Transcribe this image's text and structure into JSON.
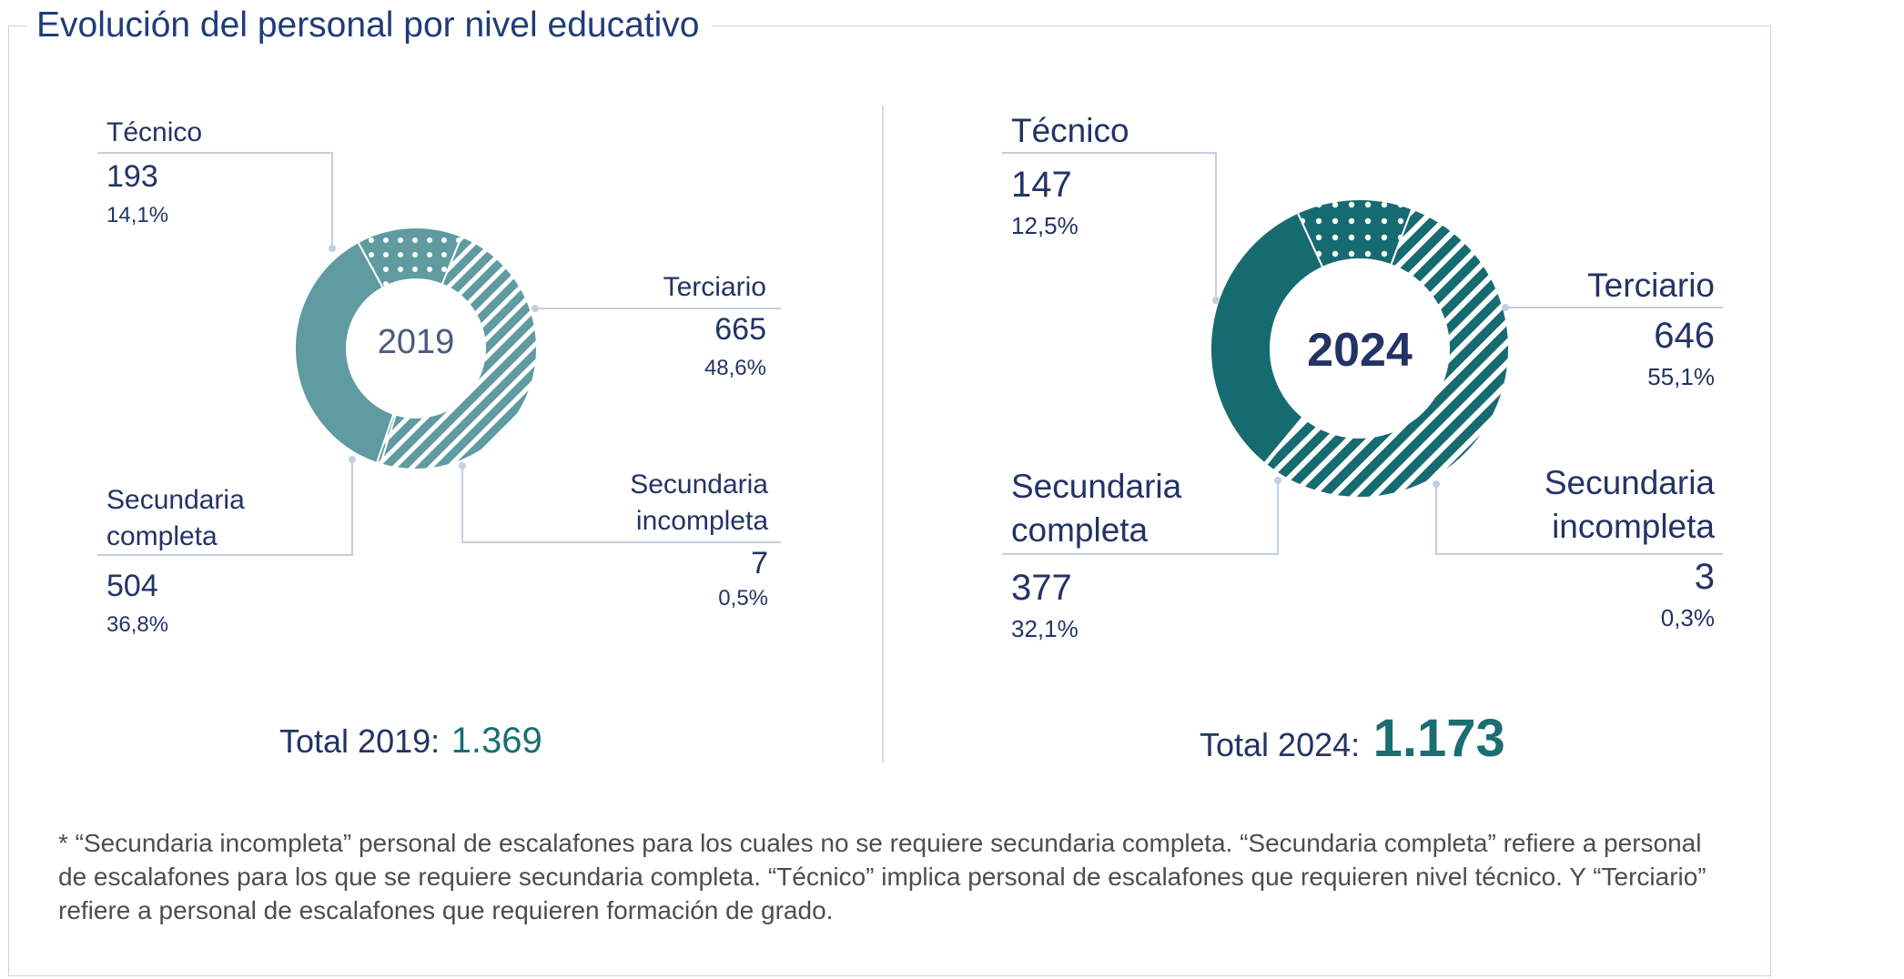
{
  "title": "Evolución del personal por nivel educativo",
  "colors": {
    "teal_2019": "#5f9ba0",
    "teal_2024": "#166b70",
    "text": "#233366",
    "total_value": "#1a6e72"
  },
  "chart_data": [
    {
      "type": "pie",
      "center_label": "2019",
      "total_label": "Total 2019:",
      "total_value": "1.369",
      "series": [
        {
          "name": "Técnico",
          "value": 193,
          "pct": "14,1%",
          "pattern": "dots"
        },
        {
          "name": "Terciario",
          "value": 665,
          "pct": "48,6%",
          "pattern": "stripes"
        },
        {
          "name": "Secundaria incompleta",
          "value": 7,
          "pct": "0,5%",
          "pattern": "stripes"
        },
        {
          "name": "Secundaria completa",
          "value": 504,
          "pct": "36,8%",
          "pattern": "solid"
        }
      ],
      "labels": {
        "tecnico": {
          "name": "Técnico",
          "value": "193",
          "pct": "14,1%"
        },
        "terciario": {
          "name": "Terciario",
          "value": "665",
          "pct": "48,6%"
        },
        "sec_incompleta": {
          "name1": "Secundaria",
          "name2": "incompleta",
          "value": "7",
          "pct": "0,5%"
        },
        "sec_completa": {
          "name1": "Secundaria",
          "name2": "completa",
          "value": "504",
          "pct": "36,8%"
        }
      }
    },
    {
      "type": "pie",
      "center_label": "2024",
      "total_label": "Total 2024:",
      "total_value": "1.173",
      "series": [
        {
          "name": "Técnico",
          "value": 147,
          "pct": "12,5%",
          "pattern": "dots"
        },
        {
          "name": "Terciario",
          "value": 646,
          "pct": "55,1%",
          "pattern": "stripes"
        },
        {
          "name": "Secundaria incompleta",
          "value": 3,
          "pct": "0,3%",
          "pattern": "stripes"
        },
        {
          "name": "Secundaria completa",
          "value": 377,
          "pct": "32,1%",
          "pattern": "solid"
        }
      ],
      "labels": {
        "tecnico": {
          "name": "Técnico",
          "value": "147",
          "pct": "12,5%"
        },
        "terciario": {
          "name": "Terciario",
          "value": "646",
          "pct": "55,1%"
        },
        "sec_incompleta": {
          "name1": "Secundaria",
          "name2": "incompleta",
          "value": "3",
          "pct": "0,3%"
        },
        "sec_completa": {
          "name1": "Secundaria",
          "name2": "completa",
          "value": "377",
          "pct": "32,1%"
        }
      }
    }
  ],
  "footnote": "* “Secundaria incompleta” personal de escalafones para los cuales no se requiere secundaria completa. “Secundaria completa” refiere a personal de escalafones para los que se requiere secundaria completa. “Técnico” implica personal de escalafones que requieren nivel técnico. Y “Terciario” refiere a personal de escalafones que requieren formación de grado."
}
